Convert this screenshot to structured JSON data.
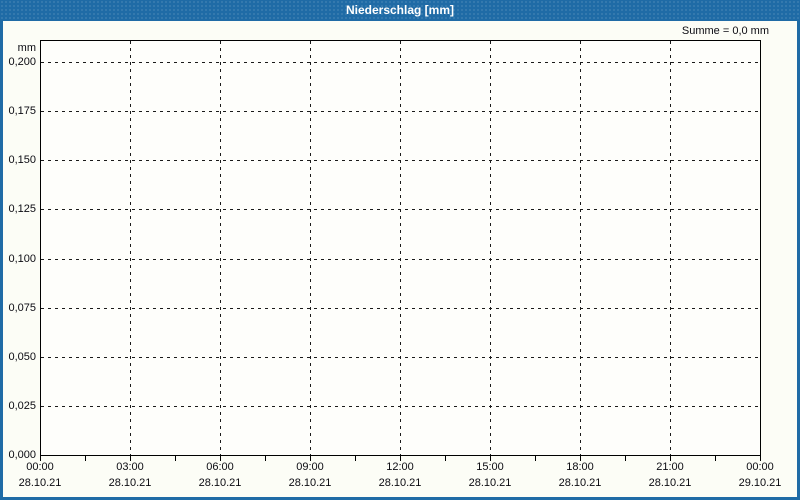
{
  "window": {
    "title": "Niederschlag [mm]",
    "title_bar_color": "#1f6ba6",
    "border_color": "#1f6ba6",
    "content_background": "#fcfdf6",
    "plot_background": "#fefefb"
  },
  "chart_data": {
    "type": "line",
    "title": "Niederschlag [mm]",
    "xlabel": "",
    "ylabel": "mm",
    "summary_label": "Summe = 0,0 mm",
    "grid": true,
    "grid_style": "dashed",
    "ylim": [
      0,
      0.21
    ],
    "y_ticks": [
      "0,000",
      "0,025",
      "0,050",
      "0,075",
      "0,100",
      "0,125",
      "0,150",
      "0,175",
      "0,200"
    ],
    "x_ticks": [
      {
        "time": "00:00",
        "date": "28.10.21"
      },
      {
        "time": "03:00",
        "date": "28.10.21"
      },
      {
        "time": "06:00",
        "date": "28.10.21"
      },
      {
        "time": "09:00",
        "date": "28.10.21"
      },
      {
        "time": "12:00",
        "date": "28.10.21"
      },
      {
        "time": "15:00",
        "date": "28.10.21"
      },
      {
        "time": "18:00",
        "date": "28.10.21"
      },
      {
        "time": "21:00",
        "date": "28.10.21"
      },
      {
        "time": "00:00",
        "date": "29.10.21"
      }
    ],
    "minor_x_ticks_per_major": 2,
    "series": [
      {
        "name": "Niederschlag",
        "values": [],
        "note": "no data drawn in plot; sum shown as 0,0 mm"
      }
    ]
  }
}
